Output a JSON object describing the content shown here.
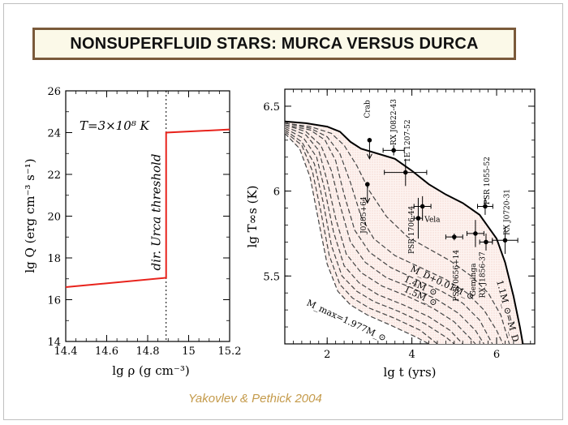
{
  "slide": {
    "title": "NONSUPERFLUID STARS: MURCA VERSUS DURCA",
    "credit": "Yakovlev & Pethick 2004"
  },
  "chart_data": [
    {
      "type": "line",
      "xlim": [
        14.4,
        15.2
      ],
      "ylim": [
        14,
        26
      ],
      "x_ticks": [
        "14.4",
        "14.6",
        "14.8",
        "15",
        "15.2"
      ],
      "y_ticks": [
        "14",
        "16",
        "18",
        "20",
        "22",
        "24",
        "26"
      ],
      "xlabel": "lg ρ (g cm⁻³)",
      "ylabel": "lg Q (erg cm⁻³ s⁻¹)",
      "annotation": "T=3×10⁸ K",
      "threshold_label": "dir. Urca threshold",
      "threshold_x": 14.89,
      "series": [
        {
          "x": [
            14.4,
            14.89,
            14.89,
            15.2
          ],
          "y": [
            16.6,
            17.05,
            24.0,
            24.15
          ],
          "color": "#e8231c"
        }
      ]
    },
    {
      "type": "line",
      "xlim": [
        1,
        6.9
      ],
      "ylim": [
        5.1,
        6.6
      ],
      "x_ticks": [
        "2",
        "4",
        "6"
      ],
      "y_ticks": [
        "5.5",
        "6",
        "6.5"
      ],
      "xlabel": "lg t   (yrs)",
      "ylabel": "lg T∞s (K)",
      "observations": [
        {
          "name": "Crab",
          "x": 3.0,
          "y": 6.3,
          "upper_limit": true
        },
        {
          "name": "RX J0822-43",
          "x": 3.57,
          "y": 6.24,
          "xerr": 0.25,
          "yerr": 0.03
        },
        {
          "name": "1E 1207-52",
          "x": 3.85,
          "y": 6.11,
          "xerr": 0.5,
          "yerr": 0.08
        },
        {
          "name": "J0205+64",
          "x": 2.95,
          "y": 6.04,
          "upper_limit": true
        },
        {
          "name": "PSR 1706-44",
          "x": 4.25,
          "y": 5.91,
          "xerr": 0.2,
          "yerr": 0.06
        },
        {
          "name": "Vela",
          "x": 4.15,
          "y": 5.84,
          "xerr": 0.1,
          "yerr": 0.12
        },
        {
          "name": "PSR 0656+14",
          "x": 5.0,
          "y": 5.73,
          "xerr": 0.2,
          "yerr": 0.02
        },
        {
          "name": "PSR 1055-52",
          "x": 5.73,
          "y": 5.91,
          "xerr": 0.18,
          "yerr": 0.05
        },
        {
          "name": "Geminga",
          "x": 5.5,
          "y": 5.75,
          "xerr": 0.2,
          "yerr": 0.08
        },
        {
          "name": "RX J1856-37",
          "x": 5.75,
          "y": 5.7,
          "xerr": 0.15,
          "yerr": 0.05
        },
        {
          "name": "RX J0720-31",
          "x": 6.2,
          "y": 5.71,
          "xerr": 0.3,
          "yerr": 0.08
        }
      ],
      "labels": [
        "M_D+0.01M_⊙",
        "1.4M_⊙",
        "1.5M_⊙",
        "M_max=1.977M_⊙",
        "1.1M_⊙=M_D"
      ]
    }
  ]
}
